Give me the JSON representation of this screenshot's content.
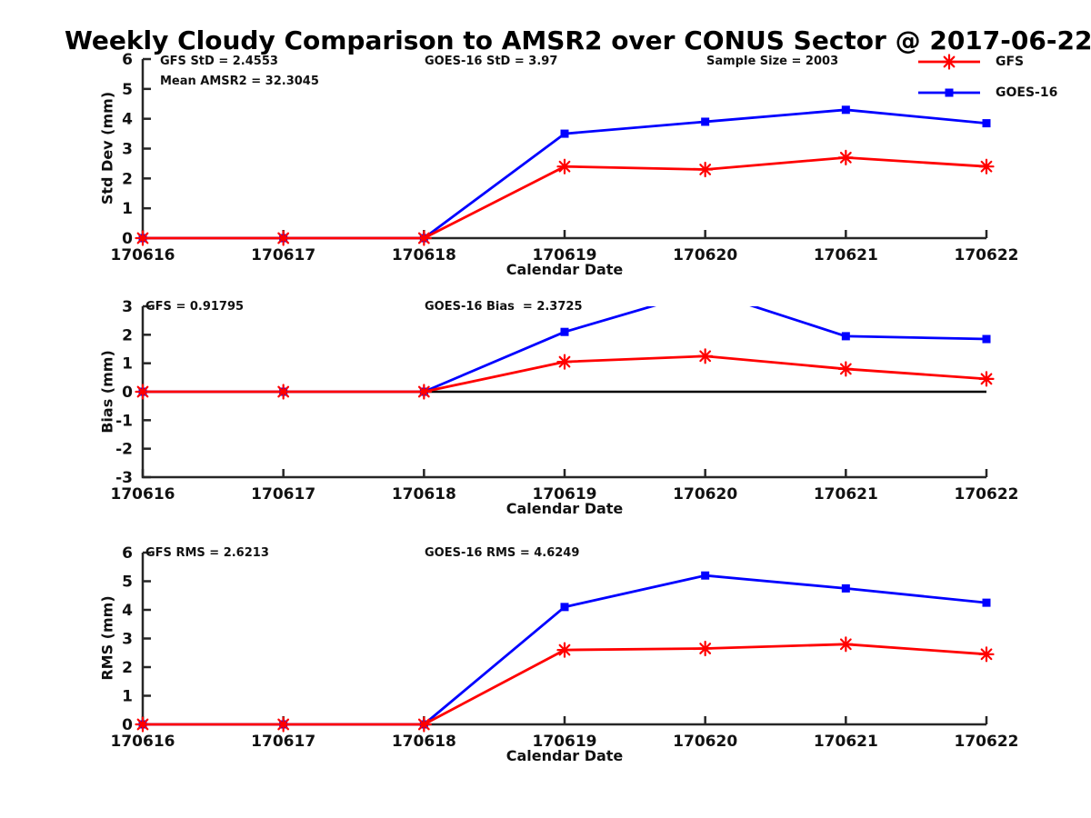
{
  "title": "Weekly Cloudy Comparison to AMSR2 over CONUS Sector @ 2017-06-22",
  "colors": {
    "gfs": "#ff0000",
    "goes16": "#0000ff",
    "axis": "#262626",
    "zero_line": "#000000"
  },
  "legend": {
    "items": [
      {
        "label": "GFS",
        "color": "#ff0000",
        "marker": "asterisk"
      },
      {
        "label": "GOES-16",
        "color": "#0000ff",
        "marker": "square"
      }
    ]
  },
  "chart_data": [
    {
      "type": "line",
      "name": "std-dev",
      "ylabel": "Std Dev (mm)",
      "xlabel": "Calendar Date",
      "categories": [
        "170616",
        "170617",
        "170618",
        "170619",
        "170620",
        "170621",
        "170622"
      ],
      "ylim": [
        0,
        6
      ],
      "yticks": [
        0,
        1,
        2,
        3,
        4,
        5,
        6
      ],
      "grid": false,
      "zero_line": false,
      "series": [
        {
          "name": "GOES-16",
          "color": "#0000ff",
          "marker": "square",
          "values": [
            0,
            0,
            0,
            3.5,
            3.9,
            4.3,
            3.85
          ]
        },
        {
          "name": "GFS",
          "color": "#ff0000",
          "marker": "asterisk",
          "values": [
            0,
            0,
            0,
            2.4,
            2.3,
            2.7,
            2.4
          ]
        }
      ],
      "annotations": [
        {
          "text": "GFS StD = 2.4553"
        },
        {
          "text": "Mean AMSR2 = 32.3045"
        },
        {
          "text": "GOES-16 StD = 3.97"
        },
        {
          "text": "Sample Size = 2003"
        }
      ]
    },
    {
      "type": "line",
      "name": "bias",
      "ylabel": "Bias (mm)",
      "xlabel": "Calendar Date",
      "categories": [
        "170616",
        "170617",
        "170618",
        "170619",
        "170620",
        "170621",
        "170622"
      ],
      "ylim": [
        -3,
        3
      ],
      "yticks": [
        -3,
        -2,
        -1,
        0,
        1,
        2,
        3
      ],
      "grid": false,
      "zero_line": true,
      "series": [
        {
          "name": "GOES-16",
          "color": "#0000ff",
          "marker": "square",
          "values": [
            0,
            0,
            0,
            2.1,
            3.55,
            1.95,
            1.85
          ]
        },
        {
          "name": "GFS",
          "color": "#ff0000",
          "marker": "asterisk",
          "values": [
            0,
            0,
            0,
            1.05,
            1.25,
            0.8,
            0.45
          ]
        }
      ],
      "annotations": [
        {
          "text": "GFS = 0.91795"
        },
        {
          "text": "GOES-16 Bias  = 2.3725"
        }
      ]
    },
    {
      "type": "line",
      "name": "rms",
      "ylabel": "RMS (mm)",
      "xlabel": "Calendar Date",
      "categories": [
        "170616",
        "170617",
        "170618",
        "170619",
        "170620",
        "170621",
        "170622"
      ],
      "ylim": [
        0,
        6
      ],
      "yticks": [
        0,
        1,
        2,
        3,
        4,
        5,
        6
      ],
      "grid": false,
      "zero_line": false,
      "series": [
        {
          "name": "GOES-16",
          "color": "#0000ff",
          "marker": "square",
          "values": [
            0,
            0,
            0,
            4.1,
            5.2,
            4.75,
            4.25
          ]
        },
        {
          "name": "GFS",
          "color": "#ff0000",
          "marker": "asterisk",
          "values": [
            0,
            0,
            0,
            2.6,
            2.65,
            2.8,
            2.45
          ]
        }
      ],
      "annotations": [
        {
          "text": "GFS RMS = 2.6213"
        },
        {
          "text": "GOES-16 RMS = 4.6249"
        }
      ]
    }
  ]
}
